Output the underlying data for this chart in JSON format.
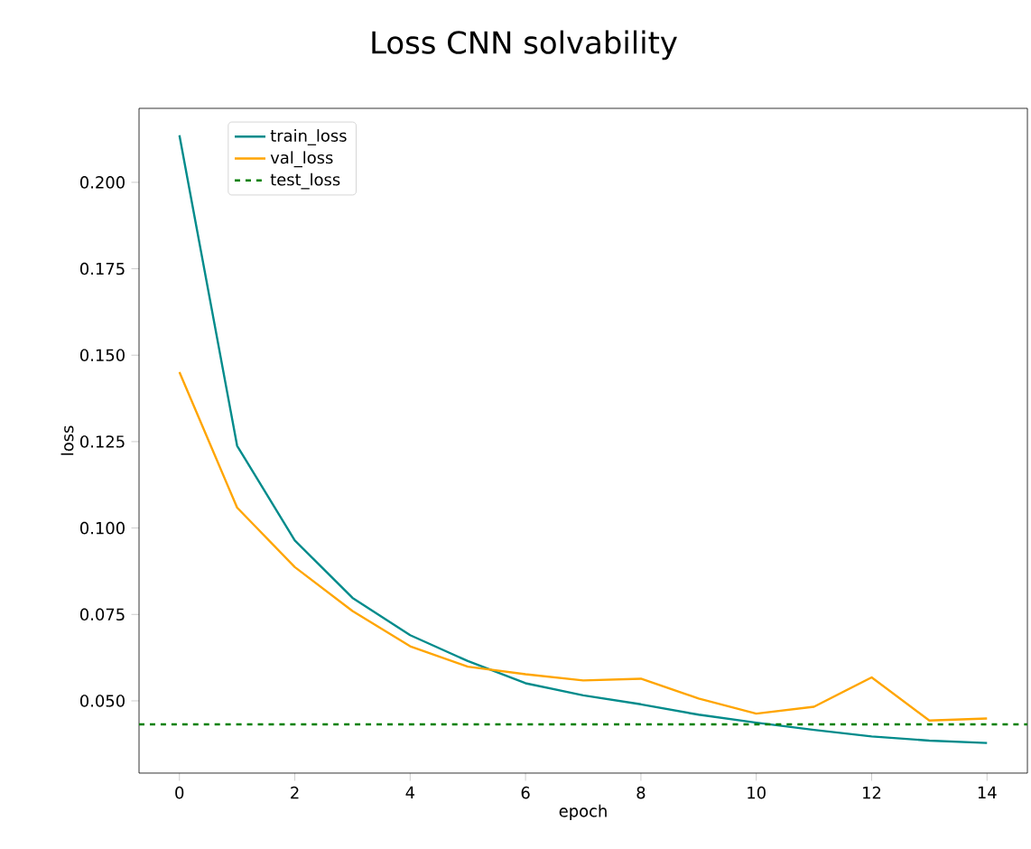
{
  "chart_data": {
    "type": "line",
    "title": "Loss CNN solvability",
    "xlabel": "epoch",
    "ylabel": "loss",
    "x": [
      0,
      1,
      2,
      3,
      4,
      5,
      6,
      7,
      8,
      9,
      10,
      11,
      12,
      13,
      14
    ],
    "series": [
      {
        "name": "train_loss",
        "color": "#008b8b",
        "values": [
          0.2136,
          0.1238,
          0.0964,
          0.0798,
          0.069,
          0.0615,
          0.0551,
          0.0516,
          0.049,
          0.046,
          0.0437,
          0.0416,
          0.0397,
          0.0385,
          0.0378
        ]
      },
      {
        "name": "val_loss",
        "color": "#ffa500",
        "values": [
          0.1451,
          0.1059,
          0.0887,
          0.076,
          0.0658,
          0.0599,
          0.0577,
          0.0559,
          0.0564,
          0.0507,
          0.0463,
          0.0483,
          0.0568,
          0.0443,
          0.0449
        ]
      }
    ],
    "ref_lines": [
      {
        "axis": "y",
        "value": 0.0432,
        "label": "test_loss",
        "color": "#008000",
        "line_style": "dashed"
      }
    ],
    "xlim": [
      -0.7,
      14.7
    ],
    "ylim": [
      0.0291,
      0.2214
    ],
    "xticks": [
      0,
      2,
      4,
      6,
      8,
      10,
      12,
      14
    ],
    "yticks": [
      {
        "value": 0.05,
        "label": "0.050"
      },
      {
        "value": 0.075,
        "label": "0.075"
      },
      {
        "value": 0.1,
        "label": "0.100"
      },
      {
        "value": 0.125,
        "label": "0.125"
      },
      {
        "value": 0.15,
        "label": "0.150"
      },
      {
        "value": 0.175,
        "label": "0.175"
      },
      {
        "value": 0.2,
        "label": "0.200"
      }
    ],
    "legend": "top left",
    "grid": false,
    "marker": "none"
  }
}
